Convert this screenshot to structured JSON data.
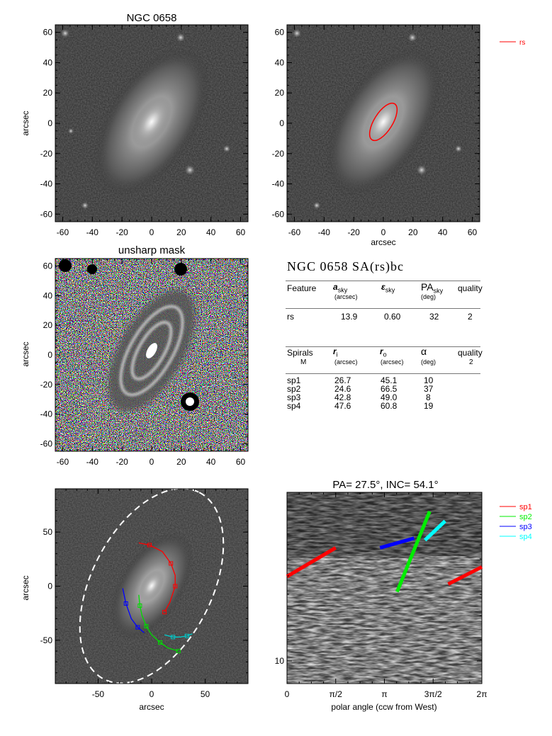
{
  "panels": {
    "image1": {
      "title": "NGC 0658",
      "ylabel": "arcsec",
      "xticks": [
        "-60",
        "-40",
        "-20",
        "0",
        "20",
        "40",
        "60"
      ],
      "yticks": [
        "60",
        "40",
        "20",
        "0",
        "-20",
        "-40",
        "-60"
      ]
    },
    "image2": {
      "xlabel": "arcsec",
      "legend": [
        {
          "label": "rs",
          "color": "#ff0000"
        }
      ],
      "xticks": [
        "-60",
        "-40",
        "-20",
        "0",
        "20",
        "40",
        "60"
      ],
      "yticks": [
        "60",
        "40",
        "20",
        "0",
        "-20",
        "-40",
        "-60"
      ]
    },
    "unsharp": {
      "title": "unsharp mask",
      "ylabel": "arcsec",
      "xticks": [
        "-60",
        "-40",
        "-20",
        "0",
        "20",
        "40",
        "60"
      ],
      "yticks": [
        "60",
        "40",
        "20",
        "0",
        "-20",
        "-40",
        "-60"
      ]
    },
    "spiral_overlay": {
      "ylabel": "arcsec",
      "xlabel": "arcsec",
      "xticks": [
        "-50",
        "0",
        "50"
      ],
      "yticks": [
        "50",
        "0",
        "-50"
      ]
    },
    "polar": {
      "title": "PA=  27.5°, INC=  54.1°",
      "xlabel": "polar angle (ccw from West)",
      "xticks": [
        "0",
        "π/2",
        "π",
        "3π/2",
        "2π"
      ],
      "yticks": [
        "10"
      ],
      "legend": [
        {
          "label": "sp1",
          "color": "#ff0000"
        },
        {
          "label": "sp2",
          "color": "#00ee00"
        },
        {
          "label": "sp3",
          "color": "#0000ff"
        },
        {
          "label": "sp4",
          "color": "#00ffff"
        }
      ]
    }
  },
  "summary": {
    "title": "NGC 0658  SA(rs)bc",
    "ring_header": {
      "feature": "Feature",
      "a": "a",
      "a_sub": "sky",
      "a_unit": "(arcsec)",
      "eps": "ε",
      "eps_sub": "sky",
      "pa": "PA",
      "pa_sub": "sky",
      "pa_unit": "(deg)",
      "quality": "quality"
    },
    "ring_rows": [
      {
        "feature": "rs",
        "a": "13.9",
        "eps": "0.60",
        "pa": "32",
        "quality": "2"
      }
    ],
    "spiral_header": {
      "spirals": "Spirals",
      "m": "M",
      "ri": "r",
      "ri_sub": "i",
      "ri_unit": "(arcsec)",
      "ro": "r",
      "ro_sub": "o",
      "ro_unit": "(arcsec)",
      "alpha": "α",
      "alpha_unit": "(deg)",
      "quality": "quality",
      "quality_val": "2"
    },
    "spiral_rows": [
      {
        "name": "sp1",
        "ri": "26.7",
        "ro": "45.1",
        "alpha": "10"
      },
      {
        "name": "sp2",
        "ri": "24.6",
        "ro": "66.5",
        "alpha": "37"
      },
      {
        "name": "sp3",
        "ri": "42.8",
        "ro": "49.0",
        "alpha": "8"
      },
      {
        "name": "sp4",
        "ri": "47.6",
        "ro": "60.8",
        "alpha": "19"
      }
    ]
  },
  "chart_data": [
    {
      "type": "image",
      "title": "NGC 0658",
      "ylabel": "arcsec",
      "xlim": [
        -65,
        65
      ],
      "ylim": [
        -65,
        65
      ]
    },
    {
      "type": "image",
      "xlabel": "arcsec",
      "xlim": [
        -65,
        65
      ],
      "ylim": [
        -65,
        65
      ],
      "ellipse": {
        "label": "rs",
        "semi_major_arcsec": 13.9,
        "ellipticity": 0.6,
        "pa_deg": 32,
        "color": "#ff0000"
      }
    },
    {
      "type": "image",
      "title": "unsharp mask",
      "ylabel": "arcsec",
      "xlim": [
        -65,
        65
      ],
      "ylim": [
        -65,
        65
      ]
    },
    {
      "type": "image",
      "xlabel": "arcsec",
      "ylabel": "arcsec",
      "xlim": [
        -90,
        90
      ],
      "ylim": [
        -90,
        90
      ],
      "series": [
        {
          "name": "sp1",
          "color": "#ff0000",
          "x": [
            -12,
            -2,
            10,
            18,
            22,
            22,
            17,
            12
          ],
          "y": [
            40,
            38,
            32,
            21,
            10,
            0,
            -15,
            -24
          ]
        },
        {
          "name": "sp2",
          "color": "#00dd00",
          "x": [
            -12,
            -11,
            -9,
            -5,
            0,
            8,
            15,
            25
          ],
          "y": [
            -8,
            -18,
            -27,
            -37,
            -45,
            -52,
            -57,
            -60
          ]
        },
        {
          "name": "sp3",
          "color": "#0000ff",
          "x": [
            -27,
            -24,
            -19,
            -13,
            -7
          ],
          "y": [
            -2,
            -16,
            -30,
            -38,
            -43
          ]
        },
        {
          "name": "sp4",
          "color": "#00cccc",
          "x": [
            12,
            20,
            27,
            33,
            38
          ],
          "y": [
            -45,
            -47,
            -47,
            -46,
            -44
          ]
        }
      ]
    },
    {
      "type": "image",
      "title": "PA=  27.5°, INC=  54.1°",
      "xlabel": "polar angle (ccw from West)",
      "xlim": [
        0,
        6.2832
      ],
      "series": [
        {
          "name": "sp1",
          "color": "#ff0000",
          "x": [
            0.0,
            1.57
          ],
          "y": [
            0.44,
            0.29
          ]
        },
        {
          "name": "sp1",
          "color": "#ff0000",
          "x": [
            5.2,
            6.2832
          ],
          "y": [
            0.48,
            0.39
          ]
        },
        {
          "name": "sp2",
          "color": "#00ee00",
          "x": [
            3.55,
            4.6
          ],
          "y": [
            0.52,
            0.1
          ]
        },
        {
          "name": "sp3",
          "color": "#0000ff",
          "x": [
            3.0,
            4.1
          ],
          "y": [
            0.29,
            0.24
          ]
        },
        {
          "name": "sp4",
          "color": "#00ffff",
          "x": [
            4.45,
            5.1
          ],
          "y": [
            0.25,
            0.15
          ]
        }
      ]
    }
  ]
}
